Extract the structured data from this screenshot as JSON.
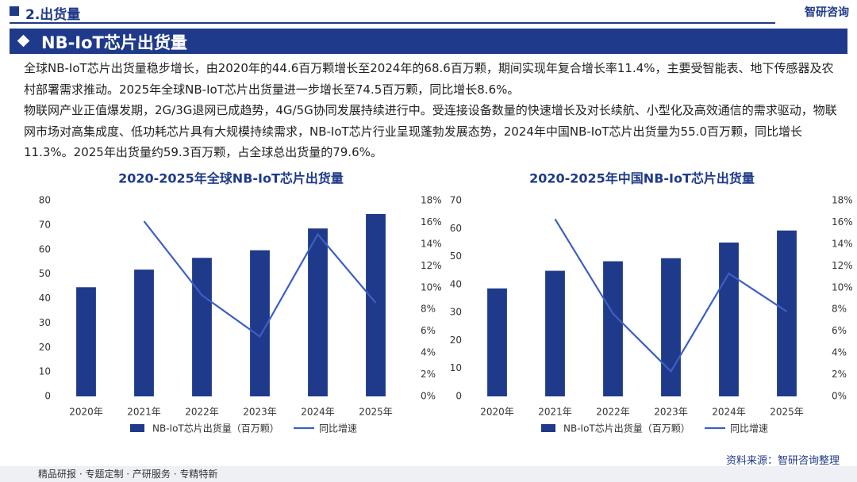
{
  "header": {
    "section": "2.出货量",
    "brand": "智研咨询"
  },
  "title": "NB-IoT芯片出货量",
  "paragraphs": [
    "全球NB-IoT芯片出货量稳步增长，由2020年的44.6百万颗增长至2024年的68.6百万颗，期间实现年复合增长率11.4%，主要受智能表、地下传感器及农村部署需求推动。2025年全球NB-IoT芯片出货量进一步增长至74.5百万颗，同比增长8.6%。",
    "物联网产业正值爆发期，2G/3G退网已成趋势，4G/5G协同发展持续进行中。受连接设备数量的快速增长及对长续航、小型化及高效通信的需求驱动，物联网市场对高集成度、低功耗芯片具有大规模持续需求，NB-IoT芯片行业呈现蓬勃发展态势，2024年中国NB-IoT芯片出货量为55.0百万颗，同比增长11.3%。2025年出货量约59.3百万颗，占全球总出货量的79.6%。"
  ],
  "chart_data": [
    {
      "type": "bar",
      "title": "2020-2025年全球NB-IoT芯片出货量",
      "categories": [
        "2020年",
        "2021年",
        "2022年",
        "2023年",
        "2024年",
        "2025年"
      ],
      "series": [
        {
          "name": "NB-IoT芯片出货量（百万颗）",
          "color": "#1f3a8a",
          "values": [
            44.6,
            51.8,
            56.6,
            59.7,
            68.6,
            74.5
          ]
        },
        {
          "name": "同比增速",
          "color": "#3d5fc4",
          "type": "line",
          "axis": "y2",
          "values": [
            null,
            16.1,
            9.3,
            5.5,
            14.9,
            8.6
          ]
        }
      ],
      "ylim": [
        0,
        80
      ],
      "yticks": [
        0,
        10,
        20,
        30,
        40,
        50,
        60,
        70,
        80
      ],
      "y2lim": [
        0,
        18
      ],
      "y2ticks": [
        {
          "value": 0,
          "label": "0%"
        },
        {
          "value": 2,
          "label": "2%"
        },
        {
          "value": 4,
          "label": "4%"
        },
        {
          "value": 6,
          "label": "6%"
        },
        {
          "value": 8,
          "label": "8%"
        },
        {
          "value": 10,
          "label": "10%"
        },
        {
          "value": 12,
          "label": "12%"
        },
        {
          "value": 14,
          "label": "14%"
        },
        {
          "value": 16,
          "label": "16%"
        },
        {
          "value": 18,
          "label": "18%"
        }
      ]
    },
    {
      "type": "bar",
      "title": "2020-2025年中国NB-IoT芯片出货量",
      "categories": [
        "2020年",
        "2021年",
        "2022年",
        "2023年",
        "2024年",
        "2025年"
      ],
      "series": [
        {
          "name": "NB-IoT芯片出货量（百万颗）",
          "color": "#1f3a8a",
          "values": [
            38.6,
            44.9,
            48.3,
            49.4,
            55.0,
            59.3
          ]
        },
        {
          "name": "同比增速",
          "color": "#3d5fc4",
          "type": "line",
          "axis": "y2",
          "values": [
            null,
            16.3,
            7.6,
            2.3,
            11.3,
            7.8
          ]
        }
      ],
      "ylim": [
        0,
        70
      ],
      "yticks": [
        0,
        10,
        20,
        30,
        40,
        50,
        60,
        70
      ],
      "y2lim": [
        0,
        18
      ],
      "y2ticks": [
        {
          "value": 0,
          "label": "0%"
        },
        {
          "value": 2,
          "label": "2%"
        },
        {
          "value": 4,
          "label": "4%"
        },
        {
          "value": 6,
          "label": "6%"
        },
        {
          "value": 8,
          "label": "8%"
        },
        {
          "value": 10,
          "label": "10%"
        },
        {
          "value": 12,
          "label": "12%"
        },
        {
          "value": 14,
          "label": "14%"
        },
        {
          "value": 16,
          "label": "16%"
        },
        {
          "value": 18,
          "label": "18%"
        }
      ]
    }
  ],
  "source": "资料来源：智研咨询整理",
  "footer": "精品研报 · 专题定制 · 产研服务 · 专精特新"
}
